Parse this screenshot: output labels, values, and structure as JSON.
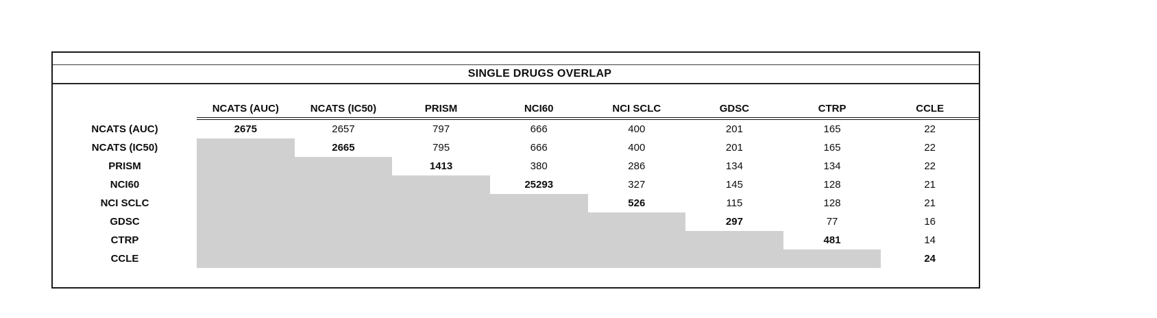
{
  "title": "SINGLE DRUGS OVERLAP",
  "colors": {
    "shaded_cell": "#d0d0d0",
    "border": "#1a1a1a",
    "text": "#0d0d0d",
    "background": "#ffffff"
  },
  "chart_data": {
    "type": "table",
    "title": "SINGLE DRUGS OVERLAP",
    "description_visible_structure": "Pairwise overlap matrix; upper triangle shows counts, diagonal values are bold, lower triangle is shaded gray with no values",
    "columns": [
      "NCATS (AUC)",
      "NCATS (IC50)",
      "PRISM",
      "NCI60",
      "NCI SCLC",
      "GDSC",
      "CTRP",
      "CCLE"
    ],
    "rows": [
      {
        "label": "NCATS (AUC)",
        "values": [
          2675,
          2657,
          797,
          666,
          400,
          201,
          165,
          22
        ]
      },
      {
        "label": "NCATS (IC50)",
        "values": [
          "",
          2665,
          795,
          666,
          400,
          201,
          165,
          22
        ]
      },
      {
        "label": "PRISM",
        "values": [
          "",
          "",
          1413,
          380,
          286,
          134,
          134,
          22
        ]
      },
      {
        "label": "NCI60",
        "values": [
          "",
          "",
          "",
          25293,
          327,
          145,
          128,
          21
        ]
      },
      {
        "label": "NCI SCLC",
        "values": [
          "",
          "",
          "",
          "",
          526,
          115,
          128,
          21
        ]
      },
      {
        "label": "GDSC",
        "values": [
          "",
          "",
          "",
          "",
          "",
          297,
          77,
          16
        ]
      },
      {
        "label": "CTRP",
        "values": [
          "",
          "",
          "",
          "",
          "",
          "",
          481,
          14
        ]
      },
      {
        "label": "CCLE",
        "values": [
          "",
          "",
          "",
          "",
          "",
          "",
          "",
          24
        ]
      }
    ],
    "diagonal_bold": true,
    "lower_triangle_shaded": true
  }
}
